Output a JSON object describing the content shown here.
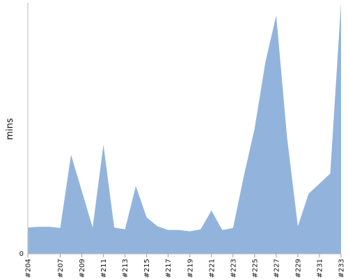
{
  "chart_data": {
    "type": "area",
    "ylabel": "mins",
    "xlabel": "",
    "title": "",
    "ylim": [
      0,
      100
    ],
    "yticks": [
      "0"
    ],
    "grid": false,
    "colors": {
      "fill": "#92b4dc",
      "axis": "#bdbdbd"
    },
    "x": [
      "#204",
      "#205",
      "#206",
      "#207",
      "#208",
      "#209",
      "#210",
      "#211",
      "#212",
      "#213",
      "#214",
      "#215",
      "#216",
      "#217",
      "#218",
      "#219",
      "#220",
      "#221",
      "#222",
      "#223",
      "#224",
      "#225",
      "#226",
      "#227",
      "#228",
      "#229",
      "#230",
      "#231",
      "#232",
      "#233"
    ],
    "xtick_labels": [
      "#204",
      "#207",
      "#209",
      "#211",
      "#213",
      "#215",
      "#217",
      "#219",
      "#221",
      "#223",
      "#225",
      "#227",
      "#229",
      "#231",
      "#233"
    ],
    "values": [
      10.5,
      10.8,
      10.8,
      10.3,
      39.5,
      25.0,
      10.5,
      43.5,
      10.5,
      9.8,
      27.0,
      14.5,
      11.0,
      9.5,
      9.5,
      9.0,
      9.8,
      17.3,
      9.5,
      10.3,
      31.0,
      50.0,
      76.5,
      95.0,
      46.5,
      11.0,
      24.0,
      28.0,
      32.0,
      100.0
    ]
  }
}
